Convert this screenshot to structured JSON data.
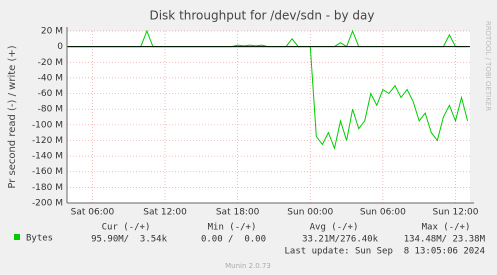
{
  "chart_data": {
    "type": "line",
    "title": "Disk throughput for /dev/sdn - by day",
    "y_label": "Pr second read (-) / write (+)",
    "xlim": [
      3.9,
      37.2
    ],
    "xticks": [
      {
        "value": 6,
        "label": "Sat 06:00"
      },
      {
        "value": 12,
        "label": "Sat 12:00"
      },
      {
        "value": 18,
        "label": "Sat 18:00"
      },
      {
        "value": 24,
        "label": "Sun 00:00"
      },
      {
        "value": 30,
        "label": "Sun 06:00"
      },
      {
        "value": 36,
        "label": "Sun 12:00"
      }
    ],
    "ylim": [
      -200,
      20
    ],
    "yticks": [
      {
        "value": 20,
        "label": "20 M"
      },
      0,
      {
        "value": -20,
        "label": "-20 M"
      },
      {
        "value": -40,
        "label": "-40 M"
      },
      {
        "value": -60,
        "label": "-60 M"
      },
      {
        "value": -80,
        "label": "-80 M"
      },
      {
        "value": -100,
        "label": "-100 M"
      },
      {
        "value": -120,
        "label": "-120 M"
      },
      {
        "value": -140,
        "label": "-140 M"
      },
      {
        "value": -160,
        "label": "-160 M"
      },
      {
        "value": -180,
        "label": "-180 M"
      },
      {
        "value": -200,
        "label": "-200 M"
      }
    ],
    "grid": true,
    "x": [
      4,
      4.5,
      5,
      5.5,
      6,
      6.5,
      7,
      7.5,
      8,
      8.5,
      9,
      9.5,
      10,
      10.5,
      11,
      11.5,
      12,
      12.5,
      13,
      13.5,
      14,
      14.5,
      15,
      15.5,
      16,
      16.5,
      17,
      17.5,
      18,
      18.5,
      19,
      19.5,
      20,
      20.5,
      21,
      21.5,
      22,
      22.5,
      23,
      23.5,
      24,
      24.5,
      25,
      25.5,
      26,
      26.5,
      27,
      27.5,
      28,
      28.5,
      29,
      29.5,
      30,
      30.5,
      31,
      31.5,
      32,
      32.5,
      33,
      33.5,
      34,
      34.5,
      35,
      35.5,
      36,
      36.5,
      37
    ],
    "series": [
      {
        "name": "Bytes",
        "color": "#00cc00",
        "values": [
          0,
          0,
          0,
          0,
          0,
          0,
          0,
          0,
          0,
          0,
          0,
          0,
          0,
          0,
          0,
          0,
          0,
          0,
          0,
          0,
          0,
          0,
          0,
          0,
          0,
          0,
          0,
          0,
          0,
          0,
          0,
          0,
          0,
          0,
          0,
          0,
          0,
          0,
          0,
          0,
          0,
          -115,
          -125,
          -110,
          -130,
          -95,
          -120,
          -80,
          -105,
          -95,
          -60,
          -75,
          -55,
          -60,
          -50,
          -65,
          -55,
          -70,
          -95,
          -85,
          -110,
          -120,
          -90,
          -75,
          -95,
          -65,
          -95
        ]
      },
      {
        "color": "#00cc00",
        "values": [
          0,
          0,
          0,
          0,
          0,
          0,
          0,
          0,
          0,
          0,
          0,
          0,
          0,
          20,
          0,
          0,
          0,
          0,
          0,
          0,
          0,
          0,
          0,
          0,
          0,
          0,
          0,
          0,
          2,
          1,
          2,
          1,
          2,
          0,
          0,
          0,
          0,
          10,
          0,
          0,
          0,
          0,
          0,
          0,
          0,
          5,
          0,
          20,
          0,
          0,
          0,
          0,
          0,
          0,
          0,
          0,
          0,
          0,
          0,
          0,
          0,
          0,
          0,
          15,
          0,
          0,
          0
        ]
      }
    ],
    "stats": {
      "headers": [
        "Cur (-/+)",
        "Min (-/+)",
        "Avg (-/+)",
        "Max (-/+)"
      ],
      "values": [
        "95.90M/  3.54k",
        "0.00 /  0.00",
        "33.21M/276.40k",
        "134.48M/ 23.38M"
      ]
    },
    "last_update": "Last update: Sun Sep  8 13:05:06 2024",
    "watermark": "RRDTOOL / TOBI OETIKER",
    "footer": "Munin 2.0.73"
  }
}
